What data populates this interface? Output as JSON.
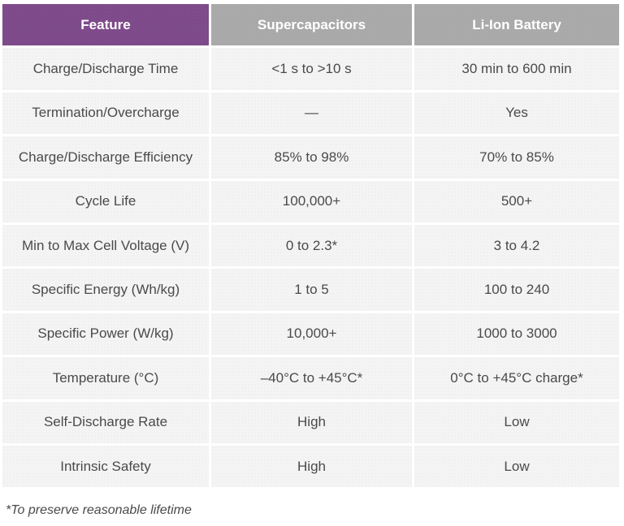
{
  "table": {
    "headers": [
      "Feature",
      "Supercapacitors",
      "Li-Ion Battery"
    ],
    "rows": [
      [
        "Charge/Discharge Time",
        "<1 s to >10 s",
        "30 min to 600 min"
      ],
      [
        "Termination/Overcharge",
        "—",
        "Yes"
      ],
      [
        "Charge/Discharge Efficiency",
        "85% to 98%",
        "70% to 85%"
      ],
      [
        "Cycle Life",
        "100,000+",
        "500+"
      ],
      [
        "Min to Max Cell Voltage (V)",
        "0 to 2.3*",
        "3 to 4.2"
      ],
      [
        "Specific Energy (Wh/kg)",
        "1 to 5",
        "100 to 240"
      ],
      [
        "Specific Power (W/kg)",
        "10,000+",
        "1000 to 3000"
      ],
      [
        "Temperature (°C)",
        "–40°C to +45°C*",
        "0°C to +45°C charge*"
      ],
      [
        "Self-Discharge Rate",
        "High",
        "Low"
      ],
      [
        "Intrinsic Safety",
        "High",
        "Low"
      ]
    ]
  },
  "footnote": "*To preserve reasonable lifetime",
  "colors": {
    "feature_header_bg": "#7e4a8a",
    "column_header_bg": "#a9a9a9",
    "cell_bg": "#f4f4f4",
    "text": "#4a4a4a"
  }
}
